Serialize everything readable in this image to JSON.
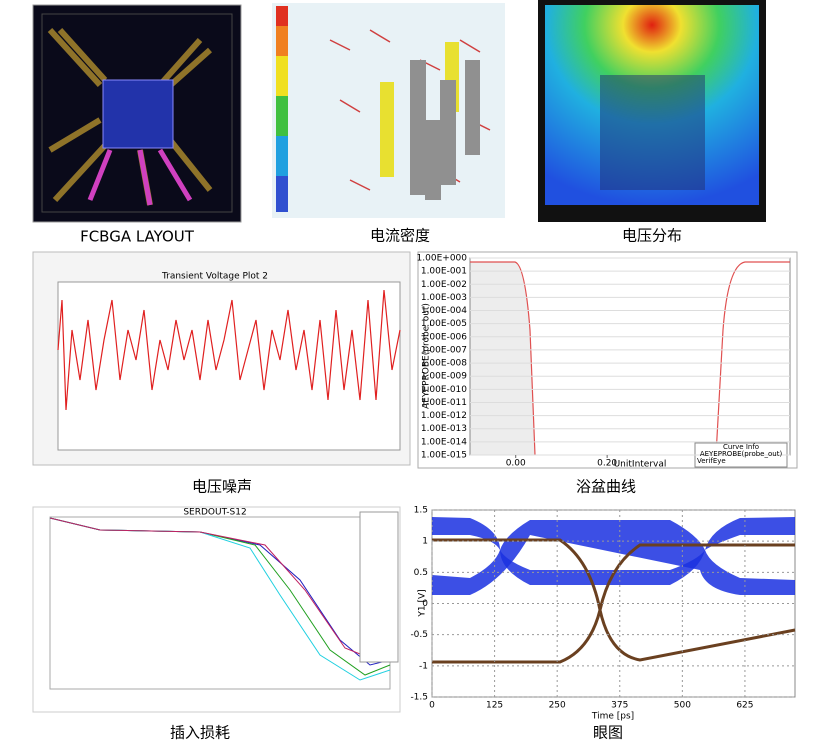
{
  "panels": [
    {
      "caption": "FCBGA LAYOUT"
    },
    {
      "caption": "电流密度"
    },
    {
      "caption": "电压分布"
    },
    {
      "caption": "电压噪声",
      "title": "Transient Voltage Plot 2"
    },
    {
      "caption": "浴盆曲线",
      "ylabel": "AEYEPROBE(probe_out)",
      "xlabel": "UnitInterval",
      "legend": [
        "Curve Info",
        "AEYEPROBE(probe_out)",
        "VerifEye"
      ],
      "xlim": [
        -0.1,
        0.6
      ],
      "xticks": [
        {
          "value": 0,
          "label": "0.00"
        },
        {
          "value": 0.2,
          "label": "0.20"
        }
      ],
      "ylim": [
        1e-15,
        1
      ],
      "log": true,
      "yticks": [
        {
          "value": 1,
          "label": "1.00E+000"
        },
        {
          "value": 0.1,
          "label": "1.00E-001"
        },
        {
          "value": 0.01,
          "label": "1.00E-002"
        },
        {
          "value": 0.001,
          "label": "1.00E-003"
        },
        {
          "value": 0.0001,
          "label": "1.00E-004"
        },
        {
          "value": 1e-05,
          "label": "1.00E-005"
        },
        {
          "value": 1e-06,
          "label": "1.00E-006"
        },
        {
          "value": 1e-07,
          "label": "1.00E-007"
        },
        {
          "value": 1e-08,
          "label": "1.00E-008"
        },
        {
          "value": 1e-09,
          "label": "1.00E-009"
        },
        {
          "value": 1e-10,
          "label": "1.00E-010"
        },
        {
          "value": 1e-11,
          "label": "1.00E-011"
        },
        {
          "value": 1e-12,
          "label": "1.00E-012"
        },
        {
          "value": 1e-13,
          "label": "1.00E-013"
        },
        {
          "value": 1e-14,
          "label": "1.00E-014"
        },
        {
          "value": 1e-15,
          "label": "1.00E-015"
        }
      ]
    },
    {
      "caption": "插入损耗",
      "title": "SERDOUT-S12"
    },
    {
      "caption": "眼图",
      "ylabel": "Y1 [V]",
      "xlabel": "Time [ps]",
      "xlim": [
        0,
        725
      ],
      "xticks": [
        0,
        125,
        250,
        375,
        500,
        625
      ],
      "ylim": [
        -1.5,
        1.5
      ],
      "yticks": [
        1.5,
        1,
        0.5,
        0,
        -0.5,
        -1,
        -1.5
      ]
    }
  ]
}
